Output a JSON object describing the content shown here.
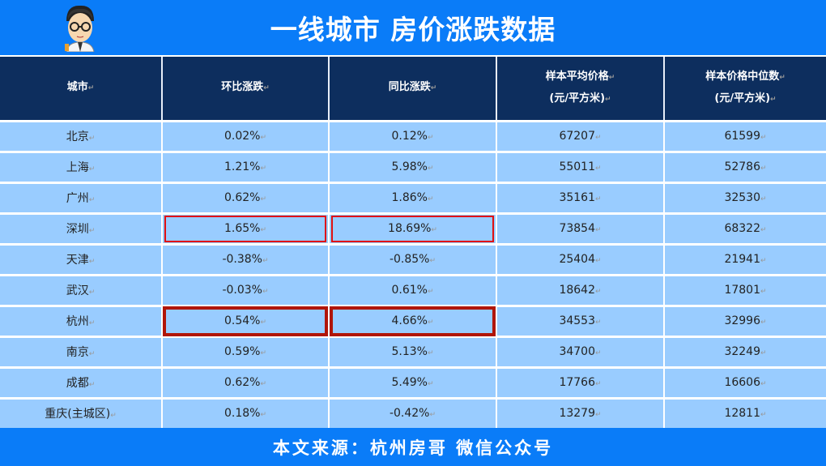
{
  "title": "一线城市 房价涨跌数据",
  "footer": "本文来源：杭州房哥 微信公众号",
  "headers": [
    [
      "城市"
    ],
    [
      "环比涨跌"
    ],
    [
      "同比涨跌"
    ],
    [
      "样本平均价格",
      "(元/平方米)"
    ],
    [
      "样本价格中位数",
      "(元/平方米)"
    ]
  ],
  "rows": [
    [
      "北京",
      "0.02%",
      "0.12%",
      "67207",
      "61599"
    ],
    [
      "上海",
      "1.21%",
      "5.98%",
      "55011",
      "52786"
    ],
    [
      "广州",
      "0.62%",
      "1.86%",
      "35161",
      "32530"
    ],
    [
      "深圳",
      "1.65%",
      "18.69%",
      "73854",
      "68322"
    ],
    [
      "天津",
      "-0.38%",
      "-0.85%",
      "25404",
      "21941"
    ],
    [
      "武汉",
      "-0.03%",
      "0.61%",
      "18642",
      "17801"
    ],
    [
      "杭州",
      "0.54%",
      "4.66%",
      "34553",
      "32996"
    ],
    [
      "南京",
      "0.59%",
      "5.13%",
      "34700",
      "32249"
    ],
    [
      "成都",
      "0.62%",
      "5.49%",
      "17766",
      "16606"
    ],
    [
      "重庆(主城区)",
      "0.18%",
      "-0.42%",
      "13279",
      "12811"
    ]
  ],
  "highlighted_rows": {
    "3": "hl1",
    "6": "hl2"
  },
  "colors": {
    "banner": "#0a7cf8",
    "header": "#0d2e5e",
    "row": "#99ccff",
    "highlight_bright": "#e01010",
    "highlight_dark": "#b01508"
  }
}
